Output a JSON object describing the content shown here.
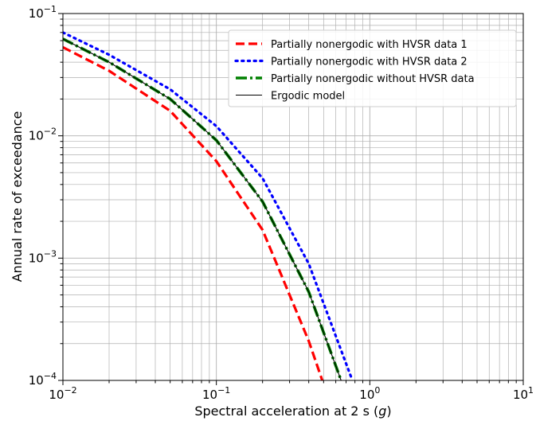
{
  "chart_data": {
    "type": "line",
    "title": "",
    "xlabel": "Spectral acceleration at 2 s",
    "xlabel_unit": "g",
    "ylabel": "Annual rate of exceedance",
    "xscale": "log",
    "yscale": "log",
    "xlim": [
      0.01,
      10
    ],
    "ylim": [
      0.0001,
      0.1
    ],
    "grid": true,
    "legend_position": "upper right",
    "x_ticks": [
      {
        "base": "10",
        "exp": "−2"
      },
      {
        "base": "10",
        "exp": "−1"
      },
      {
        "base": "10",
        "exp": "0"
      },
      {
        "base": "10",
        "exp": "1"
      }
    ],
    "y_ticks": [
      {
        "base": "10",
        "exp": "−4"
      },
      {
        "base": "10",
        "exp": "−3"
      },
      {
        "base": "10",
        "exp": "−2"
      },
      {
        "base": "10",
        "exp": "−1"
      }
    ],
    "series": [
      {
        "name": "Partially nonergodic with HVSR data 1",
        "color": "#ff0000",
        "style": "dashed",
        "x": [
          0.01,
          0.02,
          0.05,
          0.1,
          0.2,
          0.4,
          0.49
        ],
        "y": [
          0.053,
          0.034,
          0.016,
          0.0062,
          0.0017,
          0.00021,
          0.0001
        ]
      },
      {
        "name": "Partially nonergodic with HVSR data 2",
        "color": "#0000ff",
        "style": "dotted",
        "x": [
          0.01,
          0.02,
          0.05,
          0.1,
          0.2,
          0.4,
          0.77
        ],
        "y": [
          0.07,
          0.046,
          0.024,
          0.012,
          0.0045,
          0.0009,
          0.0001
        ]
      },
      {
        "name": "Partially nonergodic without HVSR data",
        "color": "#008000",
        "style": "dashdot",
        "x": [
          0.01,
          0.02,
          0.05,
          0.1,
          0.2,
          0.4,
          0.65
        ],
        "y": [
          0.062,
          0.04,
          0.02,
          0.0092,
          0.0029,
          0.00053,
          0.0001
        ]
      },
      {
        "name": "Ergodic model",
        "color": "#000000",
        "style": "solid",
        "x": [
          0.01,
          0.02,
          0.05,
          0.1,
          0.2,
          0.4,
          0.65
        ],
        "y": [
          0.062,
          0.04,
          0.02,
          0.0092,
          0.0029,
          0.00053,
          0.0001
        ]
      }
    ]
  }
}
